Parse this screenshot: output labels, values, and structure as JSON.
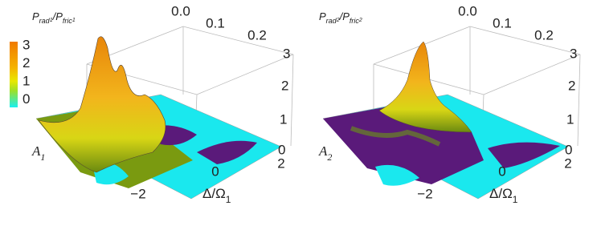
{
  "panels": [
    {
      "z_label": {
        "base1": "P",
        "sub1": "rad",
        "subsub1": "1",
        "slash": "/",
        "base2": "P",
        "sub2": "fric",
        "subsub2": "1"
      },
      "a_label": {
        "base": "A",
        "sub": "1"
      },
      "delta_label": {
        "base": "Δ/Ω",
        "sub": "1"
      },
      "top_ticks": [
        "0.0",
        "0.1",
        "0.2"
      ],
      "z_ticks": [
        "3",
        "2",
        "1",
        "0"
      ],
      "delta_ticks": [
        "−2",
        "0",
        "2"
      ],
      "colorbar_ticks": [
        "3",
        "2",
        "1",
        "0"
      ]
    },
    {
      "z_label": {
        "base1": "P",
        "sub1": "rad",
        "subsub1": "2",
        "slash": "/",
        "base2": "P",
        "sub2": "fric",
        "subsub2": "2"
      },
      "a_label": {
        "base": "A",
        "sub": "2"
      },
      "delta_label": {
        "base": "Δ/Ω",
        "sub": "1"
      },
      "top_ticks": [
        "0.0",
        "0.1",
        "0.2"
      ],
      "z_ticks": [
        "3",
        "2",
        "1",
        "0"
      ],
      "delta_ticks": [
        "−2",
        "0",
        "2"
      ]
    }
  ]
}
